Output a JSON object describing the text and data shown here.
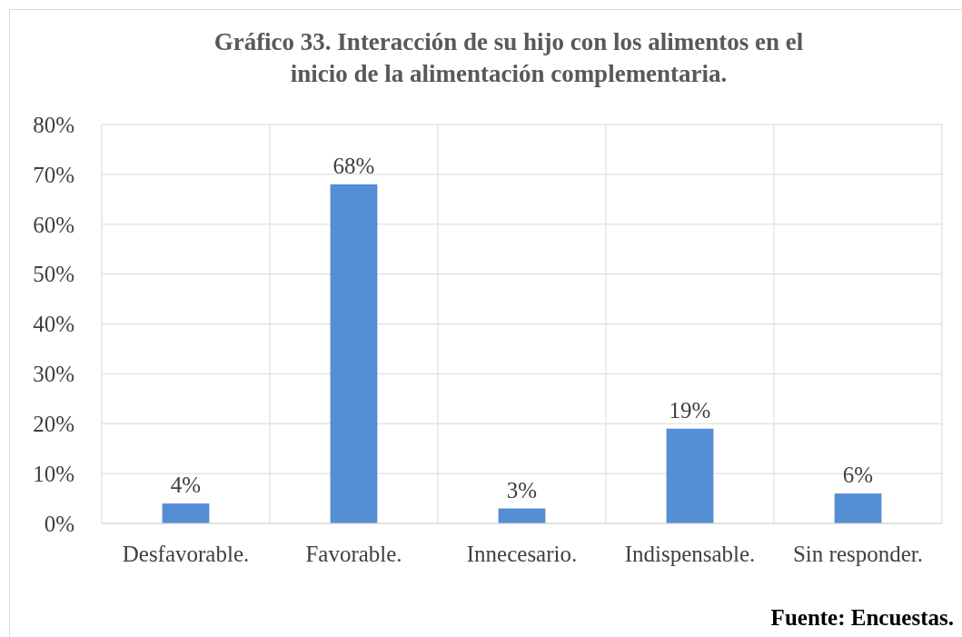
{
  "chart_data": {
    "type": "bar",
    "title": "Gráfico 33.  Interacción de su hijo con los alimentos en el\ninicio de la alimentación complementaria.",
    "categories": [
      "Desfavorable.",
      "Favorable.",
      "Innecesario.",
      "Indispensable.",
      "Sin responder."
    ],
    "values": [
      4,
      68,
      3,
      19,
      6
    ],
    "color": "#558ed5",
    "data_labels": true,
    "value_labels": [
      "4%",
      "68%",
      "3%",
      "19%",
      "6%"
    ],
    "ylim": [
      0,
      80
    ],
    "yticks": [
      {
        "value": 0,
        "label": "0%"
      },
      {
        "value": 10,
        "label": "10%"
      },
      {
        "value": 20,
        "label": "20%"
      },
      {
        "value": 30,
        "label": "30%"
      },
      {
        "value": 40,
        "label": "40%"
      },
      {
        "value": 50,
        "label": "50%"
      },
      {
        "value": 60,
        "label": "60%"
      },
      {
        "value": 70,
        "label": "70%"
      },
      {
        "value": 80,
        "label": "80%"
      }
    ],
    "grid": true,
    "annotations": [
      "Fuente: Encuestas."
    ]
  }
}
